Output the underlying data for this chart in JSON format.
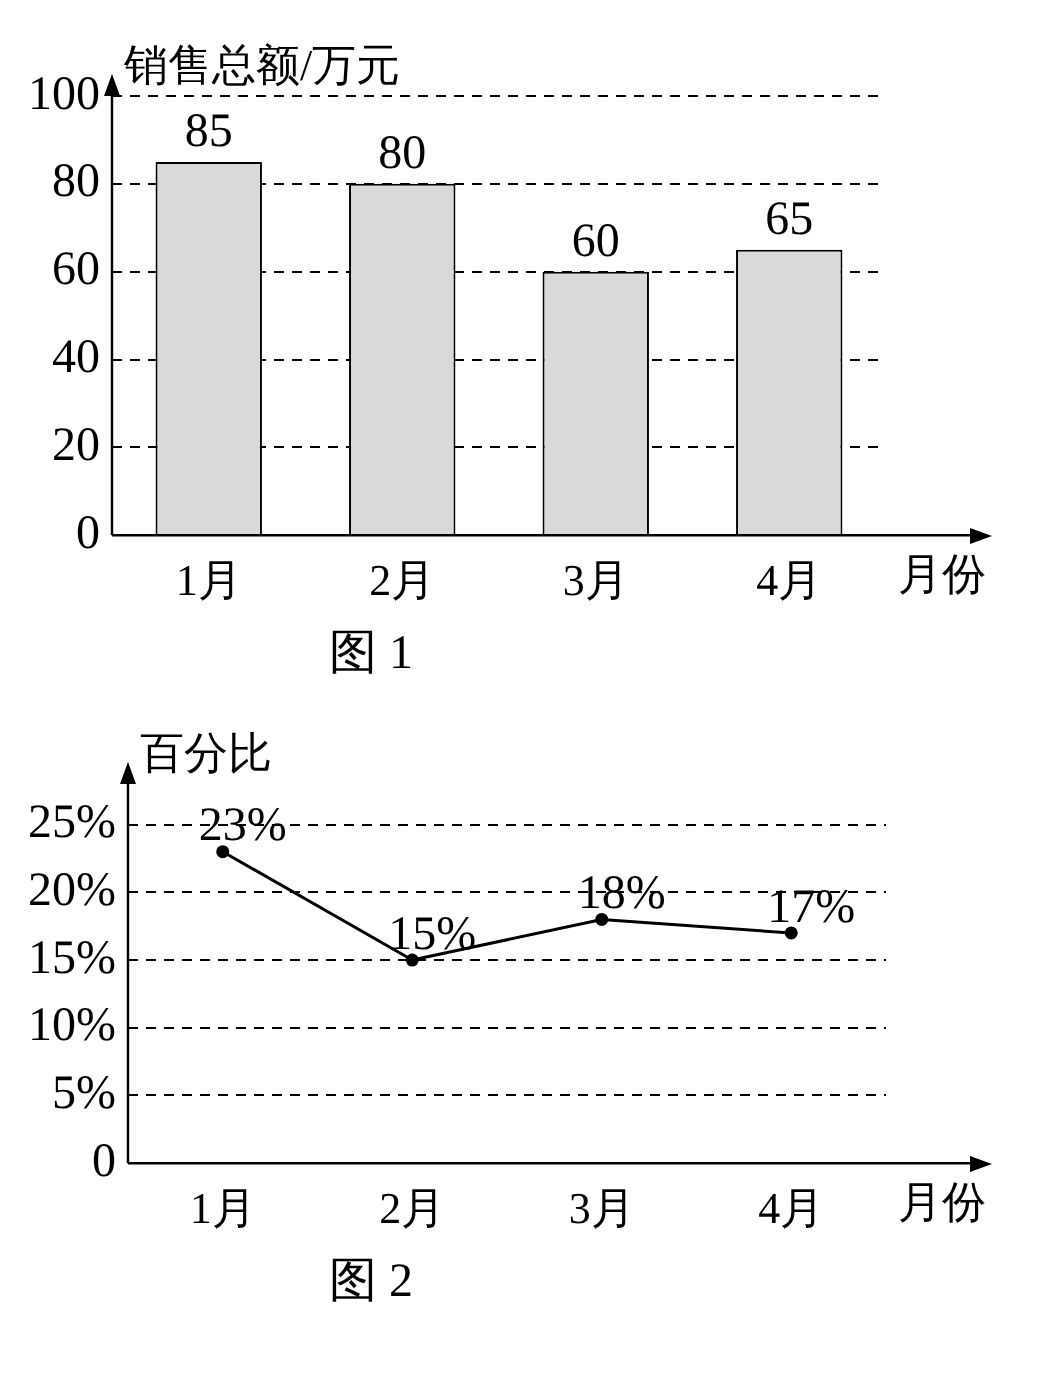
{
  "chart_data": [
    {
      "type": "bar",
      "categories": [
        "1月",
        "2月",
        "3月",
        "4月"
      ],
      "values": [
        85,
        80,
        60,
        65
      ],
      "color": "#d9d9d9",
      "ylim": [
        0,
        100
      ],
      "yticks": [
        0,
        20,
        40,
        60,
        80,
        100
      ],
      "grid": "y",
      "ylabel": "销售总额/万元",
      "xlabel": "月份",
      "data_labels": true,
      "annotations": [
        "图 1"
      ]
    },
    {
      "type": "line",
      "categories": [
        "1月",
        "2月",
        "3月",
        "4月"
      ],
      "values": [
        23,
        15,
        18,
        17
      ],
      "color": "#000000",
      "marker": "circle",
      "value_labels": [
        "23%",
        "15%",
        "18%",
        "17%"
      ],
      "ylim": [
        0,
        28
      ],
      "yticks": [
        0,
        {
          "value": 5,
          "label": "5%"
        },
        {
          "value": 10,
          "label": "10%"
        },
        {
          "value": 15,
          "label": "15%"
        },
        {
          "value": 20,
          "label": "20%"
        },
        {
          "value": 25,
          "label": "25%"
        }
      ],
      "grid": "y",
      "ylabel": "百分比",
      "xlabel": "月份",
      "annotations": [
        "图 2"
      ]
    }
  ]
}
